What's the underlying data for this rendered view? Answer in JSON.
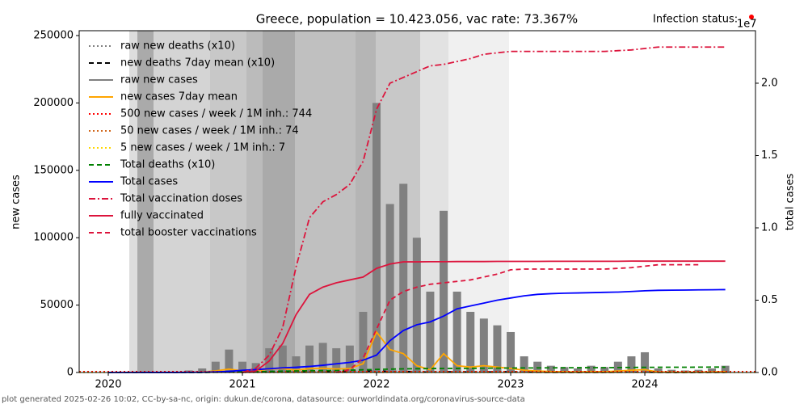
{
  "chart_data": {
    "type": "combo",
    "title": "Greece, population = 10.423.056, vac rate: 73.367%",
    "status_label": "Infection status:",
    "footer": "plot generated 2025-02-26 10:02, CC-by-sa-nc, origin: dukun.de/corona, datasource: ourworldindata.org/coronavirus-source-data",
    "y_label": "new cases",
    "y2_label": "total cases",
    "y2_offset_label": "1e7",
    "legend": "upper left",
    "xlim": [
      2019.783,
      2024.825
    ],
    "xticks": [
      2020,
      2021,
      2022,
      2023,
      2024
    ],
    "ylim": [
      0,
      253600
    ],
    "yticks": [
      0,
      50000,
      100000,
      150000,
      200000,
      250000
    ],
    "y2lim": [
      0,
      23630000
    ],
    "y2ticks": [
      {
        "value": 0,
        "label": "0.0"
      },
      {
        "value": 5000000,
        "label": "0.5"
      },
      {
        "value": 10000000,
        "label": "1.0"
      },
      {
        "value": 15000000,
        "label": "1.5"
      },
      {
        "value": 20000000,
        "label": "2.0"
      }
    ],
    "x": [
      2020,
      2020.1,
      2020.2,
      2020.3,
      2020.4,
      2020.5,
      2020.6,
      2020.7,
      2020.8,
      2020.9,
      2021,
      2021.1,
      2021.2,
      2021.3,
      2021.4,
      2021.5,
      2021.6,
      2021.7,
      2021.8,
      2021.9,
      2022,
      2022.1,
      2022.2,
      2022.3,
      2022.4,
      2022.5,
      2022.6,
      2022.7,
      2022.8,
      2022.9,
      2023,
      2023.1,
      2023.2,
      2023.3,
      2023.4,
      2023.5,
      2023.6,
      2023.7,
      2023.8,
      2023.9,
      2024,
      2024.1,
      2024.2,
      2024.3,
      2024.4,
      2024.5,
      2024.6
    ],
    "series": [
      {
        "name": "raw new deaths (x10)",
        "kind": "line",
        "dash": "dotted",
        "color": "#808080",
        "values": [
          0,
          0,
          50,
          30,
          10,
          10,
          30,
          60,
          300,
          900,
          600,
          500,
          800,
          900,
          600,
          400,
          500,
          700,
          900,
          1100,
          1200,
          1000,
          800,
          600,
          300,
          500,
          600,
          400,
          400,
          500,
          600,
          300,
          200,
          100,
          100,
          50,
          100,
          100,
          200,
          300,
          300,
          100,
          50,
          50,
          50,
          100,
          100
        ]
      },
      {
        "name": "new deaths 7day mean (x10)",
        "kind": "line",
        "dash": "dashed",
        "color": "#000000",
        "values": [
          0,
          0,
          40,
          20,
          10,
          10,
          20,
          50,
          250,
          800,
          550,
          450,
          700,
          800,
          550,
          350,
          450,
          600,
          800,
          1000,
          1100,
          900,
          700,
          500,
          250,
          450,
          550,
          350,
          350,
          450,
          550,
          250,
          150,
          80,
          80,
          40,
          80,
          80,
          150,
          250,
          250,
          80,
          40,
          40,
          40,
          80,
          80
        ]
      },
      {
        "name": "raw new cases",
        "kind": "bar",
        "dash": "solid",
        "color": "#808080",
        "values": [
          0,
          0,
          300,
          200,
          100,
          300,
          1500,
          3000,
          8000,
          17000,
          8000,
          7000,
          18000,
          20000,
          12000,
          20000,
          22000,
          18000,
          20000,
          45000,
          200000,
          125000,
          140000,
          100000,
          60000,
          120000,
          60000,
          45000,
          40000,
          35000,
          30000,
          12000,
          8000,
          5000,
          4000,
          3000,
          5000,
          4000,
          8000,
          12000,
          15000,
          3000,
          2000,
          1500,
          2000,
          3000,
          5000
        ]
      },
      {
        "name": "new cases 7day mean",
        "kind": "line",
        "dash": "solid",
        "color": "#ffa500",
        "values": [
          0,
          0,
          50,
          30,
          20,
          50,
          200,
          450,
          1200,
          2500,
          1200,
          1000,
          2600,
          2900,
          1700,
          2900,
          3100,
          2600,
          2900,
          6500,
          30000,
          17000,
          14000,
          5000,
          2000,
          14000,
          5000,
          4000,
          5000,
          4000,
          3000,
          1700,
          1100,
          700,
          600,
          400,
          700,
          600,
          1100,
          1700,
          2100,
          400,
          300,
          200,
          300,
          400,
          700
        ]
      },
      {
        "name": "500 new cases / week / 1M inh.: 744",
        "kind": "hline",
        "dash": "dotted",
        "color": "#ff0000",
        "value": 744
      },
      {
        "name": "50 new cases / week / 1M inh.: 74",
        "kind": "hline",
        "dash": "dotted",
        "color": "#d2691e",
        "value": 74
      },
      {
        "name": "5 new cases / week / 1M inh.: 7",
        "kind": "hline",
        "dash": "dotted",
        "color": "#ffd700",
        "value": 7
      },
      {
        "name": "Total deaths (x10)",
        "kind": "line",
        "dash": "dashed",
        "color": "#008000",
        "values": [
          0,
          0,
          10,
          20,
          20,
          20,
          30,
          50,
          200,
          400,
          500,
          600,
          800,
          1000,
          1200,
          1300,
          1400,
          1500,
          1700,
          2000,
          2300,
          2500,
          2700,
          2800,
          2900,
          3000,
          3050,
          3100,
          3150,
          3250,
          3300,
          3350,
          3400,
          3450,
          3500,
          3550,
          3550,
          3600,
          3650,
          3750,
          3800,
          3850,
          3900,
          3900,
          3950,
          4000,
          4000
        ]
      },
      {
        "name": "Total cases",
        "kind": "line",
        "dash": "solid",
        "color": "#0000ff",
        "axis": "y2",
        "values": [
          0,
          0,
          2000,
          3000,
          3500,
          4000,
          10000,
          15000,
          40000,
          80000,
          150000,
          200000,
          260000,
          320000,
          360000,
          420000,
          500000,
          600000,
          700000,
          850000,
          1200000,
          2200000,
          2900000,
          3300000,
          3500000,
          3900000,
          4400000,
          4600000,
          4800000,
          5000000,
          5150000,
          5300000,
          5400000,
          5450000,
          5480000,
          5500000,
          5520000,
          5540000,
          5560000,
          5600000,
          5650000,
          5680000,
          5690000,
          5700000,
          5710000,
          5720000,
          5730000
        ]
      },
      {
        "name": "Total vaccination doses",
        "kind": "line",
        "dash": "dashdot",
        "color": "#dc143c",
        "axis": "y2",
        "values": [
          null,
          null,
          null,
          null,
          null,
          null,
          null,
          null,
          null,
          null,
          0,
          300000,
          1200000,
          3100000,
          7300000,
          10700000,
          11800000,
          12300000,
          13000000,
          14600000,
          18200000,
          20000000,
          20400000,
          20800000,
          21200000,
          21300000,
          21500000,
          21700000,
          22000000,
          22100000,
          22200000,
          22200000,
          22200000,
          22200000,
          22200000,
          22200000,
          22200000,
          22200000,
          22250000,
          22300000,
          22400000,
          22500000,
          22500000,
          22500000,
          22500000,
          22500000,
          22500000
        ]
      },
      {
        "name": "fully vaccinated",
        "kind": "line",
        "dash": "solid",
        "color": "#dc143c",
        "axis": "y2",
        "values": [
          null,
          null,
          null,
          null,
          null,
          null,
          null,
          null,
          null,
          null,
          0,
          100000,
          800000,
          2000000,
          4000000,
          5400000,
          5900000,
          6200000,
          6400000,
          6600000,
          7200000,
          7500000,
          7650000,
          7650000,
          7660000,
          7660000,
          7670000,
          7670000,
          7670000,
          7680000,
          7680000,
          7680000,
          7680000,
          7690000,
          7690000,
          7690000,
          7690000,
          7690000,
          7690000,
          7700000,
          7700000,
          7700000,
          7700000,
          7700000,
          7700000,
          7700000,
          7700000
        ]
      },
      {
        "name": "total booster vaccinations",
        "kind": "line",
        "dash": "dashed",
        "color": "#dc143c",
        "axis": "y2",
        "values": [
          null,
          null,
          null,
          null,
          null,
          null,
          null,
          null,
          null,
          null,
          null,
          null,
          null,
          null,
          null,
          null,
          null,
          0,
          200000,
          1000000,
          3000000,
          5000000,
          5600000,
          5900000,
          6100000,
          6200000,
          6300000,
          6400000,
          6600000,
          6800000,
          7100000,
          7150000,
          7150000,
          7150000,
          7150000,
          7150000,
          7150000,
          7150000,
          7200000,
          7250000,
          7350000,
          7450000,
          7450000,
          7450000,
          7450000,
          null,
          null
        ]
      }
    ]
  }
}
